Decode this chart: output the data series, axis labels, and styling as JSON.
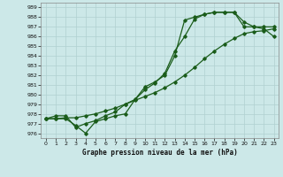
{
  "xlabel": "Graphe pression niveau de la mer (hPa)",
  "bg_color": "#cce8e8",
  "grid_color": "#b0d0d0",
  "line_color": "#1a5c1a",
  "ylim": [
    975.5,
    989.5
  ],
  "xlim": [
    -0.5,
    23.5
  ],
  "yticks": [
    976,
    977,
    978,
    979,
    980,
    981,
    982,
    983,
    984,
    985,
    986,
    987,
    988,
    989
  ],
  "xticks": [
    0,
    1,
    2,
    3,
    4,
    5,
    6,
    7,
    8,
    9,
    10,
    11,
    12,
    13,
    14,
    15,
    16,
    17,
    18,
    19,
    20,
    21,
    22,
    23
  ],
  "series1": {
    "x": [
      0,
      1,
      2,
      3,
      4,
      5,
      6,
      7,
      8,
      9,
      10,
      11,
      12,
      13,
      14,
      15,
      16,
      17,
      18,
      19,
      20,
      21,
      22,
      23
    ],
    "y": [
      977.5,
      977.8,
      977.8,
      976.6,
      977.0,
      977.3,
      977.8,
      978.2,
      979.0,
      979.5,
      980.8,
      981.3,
      982.0,
      984.0,
      987.7,
      988.0,
      988.3,
      988.5,
      988.5,
      988.5,
      987.0,
      987.0,
      987.0,
      987.0
    ]
  },
  "series2": {
    "x": [
      0,
      1,
      2,
      3,
      4,
      5,
      6,
      7,
      8,
      9,
      10,
      11,
      12,
      13,
      14,
      15,
      16,
      17,
      18,
      19,
      20,
      21,
      22,
      23
    ],
    "y": [
      977.5,
      977.5,
      977.5,
      976.8,
      976.0,
      977.2,
      977.5,
      977.8,
      978.0,
      979.5,
      980.5,
      981.2,
      982.2,
      984.5,
      986.0,
      987.8,
      988.3,
      988.5,
      988.5,
      988.5,
      987.5,
      987.0,
      986.8,
      986.0
    ]
  },
  "series3": {
    "x": [
      0,
      1,
      2,
      3,
      4,
      5,
      6,
      7,
      8,
      9,
      10,
      11,
      12,
      13,
      14,
      15,
      16,
      17,
      18,
      19,
      20,
      21,
      22,
      23
    ],
    "y": [
      977.5,
      977.5,
      977.6,
      977.6,
      977.8,
      978.0,
      978.3,
      978.6,
      979.0,
      979.4,
      979.8,
      980.2,
      980.7,
      981.3,
      982.0,
      982.8,
      983.7,
      984.5,
      985.2,
      985.8,
      986.3,
      986.5,
      986.6,
      986.8
    ]
  }
}
